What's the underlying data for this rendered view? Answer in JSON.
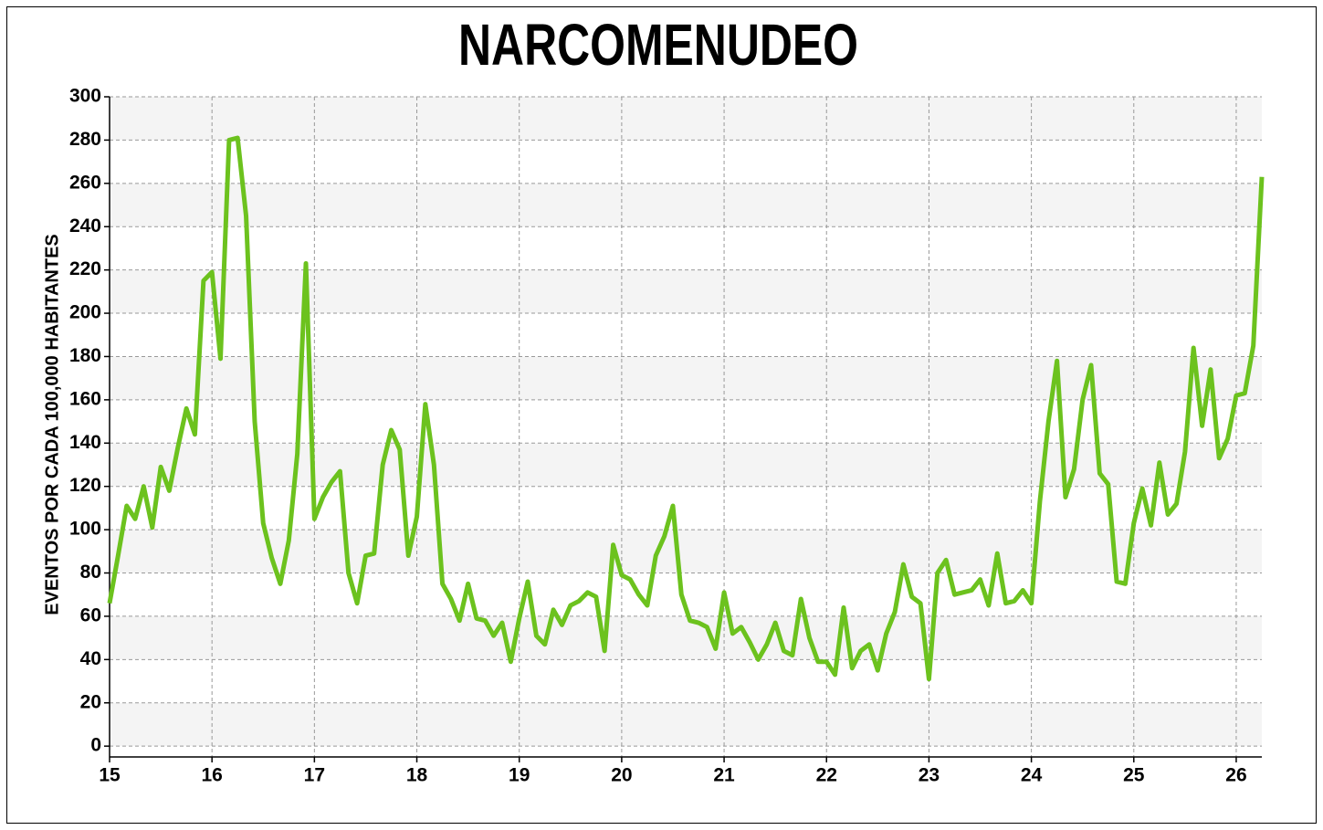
{
  "chart_data": {
    "type": "line",
    "title": "NARCOMENUDEO",
    "y_label": "EVENTOS POR CADA 100,000 HABITANTES",
    "xlim": [
      15,
      26.25
    ],
    "ylim": [
      -5,
      300
    ],
    "xticks": [
      15,
      16,
      17,
      18,
      19,
      20,
      21,
      22,
      23,
      24,
      25,
      26
    ],
    "yticks": [
      0,
      20,
      40,
      60,
      80,
      100,
      120,
      140,
      160,
      180,
      200,
      220,
      240,
      260,
      280,
      300
    ],
    "grid": true,
    "x": [
      15,
      15.083,
      15.167,
      15.25,
      15.333,
      15.417,
      15.5,
      15.583,
      15.667,
      15.75,
      15.833,
      15.917,
      16,
      16.083,
      16.167,
      16.25,
      16.333,
      16.417,
      16.5,
      16.583,
      16.667,
      16.75,
      16.833,
      16.917,
      17,
      17.083,
      17.167,
      17.25,
      17.333,
      17.417,
      17.5,
      17.583,
      17.667,
      17.75,
      17.833,
      17.917,
      18,
      18.083,
      18.167,
      18.25,
      18.333,
      18.417,
      18.5,
      18.583,
      18.667,
      18.75,
      18.833,
      18.917,
      19,
      19.083,
      19.167,
      19.25,
      19.333,
      19.417,
      19.5,
      19.583,
      19.667,
      19.75,
      19.833,
      19.917,
      20,
      20.083,
      20.167,
      20.25,
      20.333,
      20.417,
      20.5,
      20.583,
      20.667,
      20.75,
      20.833,
      20.917,
      21,
      21.083,
      21.167,
      21.25,
      21.333,
      21.417,
      21.5,
      21.583,
      21.667,
      21.75,
      21.833,
      21.917,
      22,
      22.083,
      22.167,
      22.25,
      22.333,
      22.417,
      22.5,
      22.583,
      22.667,
      22.75,
      22.833,
      22.917,
      23,
      23.083,
      23.167,
      23.25,
      23.333,
      23.417,
      23.5,
      23.583,
      23.667,
      23.75,
      23.833,
      23.917,
      24,
      24.083,
      24.167,
      24.25,
      24.333,
      24.417,
      24.5,
      24.583,
      24.667,
      24.75,
      24.833,
      24.917,
      25,
      25.083,
      25.167,
      25.25,
      25.333,
      25.417,
      25.5,
      25.583,
      25.667,
      25.75,
      25.833,
      25.917,
      26,
      26.083,
      26.167,
      26.25
    ],
    "series": [
      {
        "name": "NARCOMENUDEO",
        "color": "#6cc21e",
        "values": [
          66,
          88,
          111,
          105,
          120,
          101,
          129,
          118,
          138,
          156,
          144,
          215,
          219,
          179,
          280,
          281,
          245,
          150,
          103,
          87,
          75,
          95,
          135,
          223,
          105,
          115,
          122,
          127,
          80,
          66,
          88,
          89,
          130,
          146,
          137,
          88,
          106,
          158,
          130,
          75,
          68,
          58,
          75,
          59,
          58,
          51,
          57,
          39,
          59,
          76,
          51,
          47,
          63,
          56,
          65,
          67,
          71,
          69,
          44,
          93,
          79,
          77,
          70,
          65,
          88,
          97,
          111,
          70,
          58,
          57,
          55,
          45,
          71,
          52,
          55,
          48,
          40,
          47,
          57,
          44,
          42,
          68,
          50,
          39,
          39,
          33,
          64,
          36,
          44,
          47,
          35,
          52,
          62,
          84,
          69,
          66,
          31,
          80,
          86,
          70,
          71,
          72,
          77,
          65,
          89,
          66,
          67,
          72,
          66,
          113,
          150,
          178,
          115,
          128,
          160,
          176,
          126,
          121,
          76,
          75,
          103,
          119,
          102,
          131,
          107,
          112,
          136,
          184,
          148,
          174,
          133,
          142,
          162,
          163,
          185,
          263
        ]
      }
    ]
  }
}
